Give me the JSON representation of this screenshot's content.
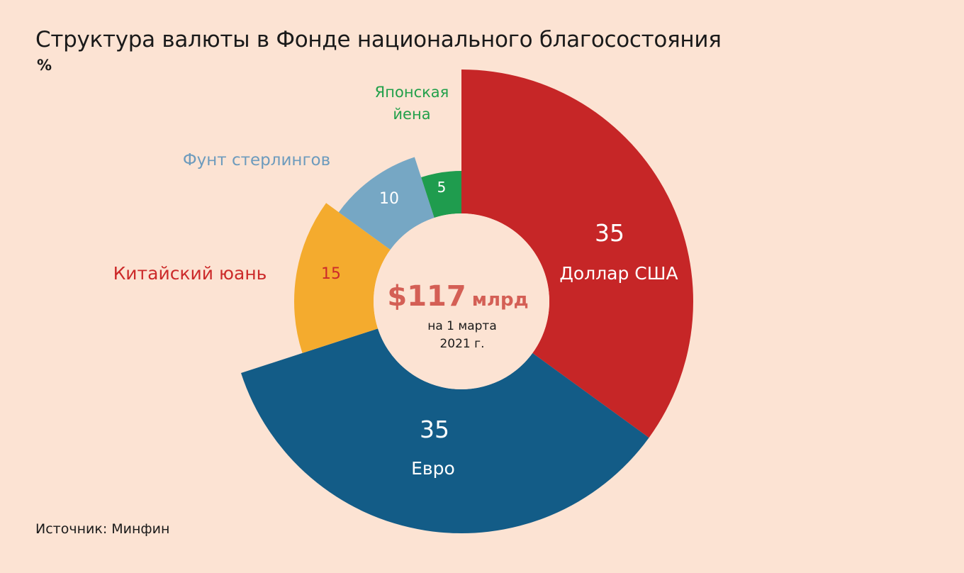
{
  "title": "Структура валюты в Фонде национального благосостояния",
  "unit": "%",
  "source": "Источник: Минфин",
  "center": {
    "amount": "$117",
    "amount_unit": "млрд",
    "date_line1": "на 1 марта",
    "date_line2": "2021 г."
  },
  "chart_data": {
    "type": "pie",
    "total_label": "$117 млрд",
    "series": [
      {
        "name": "Доллар США",
        "value": 35,
        "color": "#c62627",
        "label_color": "#ffffff",
        "value_color": "#ffffff"
      },
      {
        "name": "Евро",
        "value": 35,
        "color": "#135c87",
        "label_color": "#ffffff",
        "value_color": "#ffffff"
      },
      {
        "name": "Китайский юань",
        "value": 15,
        "color": "#f4ab2e",
        "label_color": "#cc2a2a",
        "value_color": "#cc2a2a"
      },
      {
        "name": "Фунт стерлингов",
        "value": 10,
        "color": "#76a7c4",
        "label_color": "#6d9bbd",
        "value_color": "#ffffff"
      },
      {
        "name": "Японская йена",
        "value": 5,
        "color": "#1f9c4e",
        "label_color": "#22a04a",
        "value_color": "#ffffff"
      }
    ],
    "center_color": "#fce3d3",
    "center_text_color": "#d45f55"
  }
}
